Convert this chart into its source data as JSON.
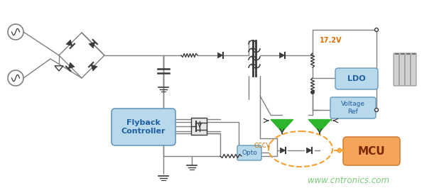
{
  "bg_color": "#ffffff",
  "line_color": "#808080",
  "dark_line": "#3a3a3a",
  "green_color": "#2db52d",
  "orange_color": "#f5a55a",
  "orange_edge": "#d4823a",
  "blue_box_color": "#b8d8ec",
  "blue_box_edge": "#6699bb",
  "text_color_green": "#4db84d",
  "title_voltage": "17.2V",
  "label_flyback": "Flyback\nController",
  "label_ldo": "LDO",
  "label_vref": "Voltage\nRef",
  "label_mcu": "MCU",
  "label_opto": "Opto",
  "label_cccv": "CCCV",
  "label_www": "www.cntronics.com",
  "figsize": [
    6.25,
    2.65
  ],
  "dpi": 100
}
